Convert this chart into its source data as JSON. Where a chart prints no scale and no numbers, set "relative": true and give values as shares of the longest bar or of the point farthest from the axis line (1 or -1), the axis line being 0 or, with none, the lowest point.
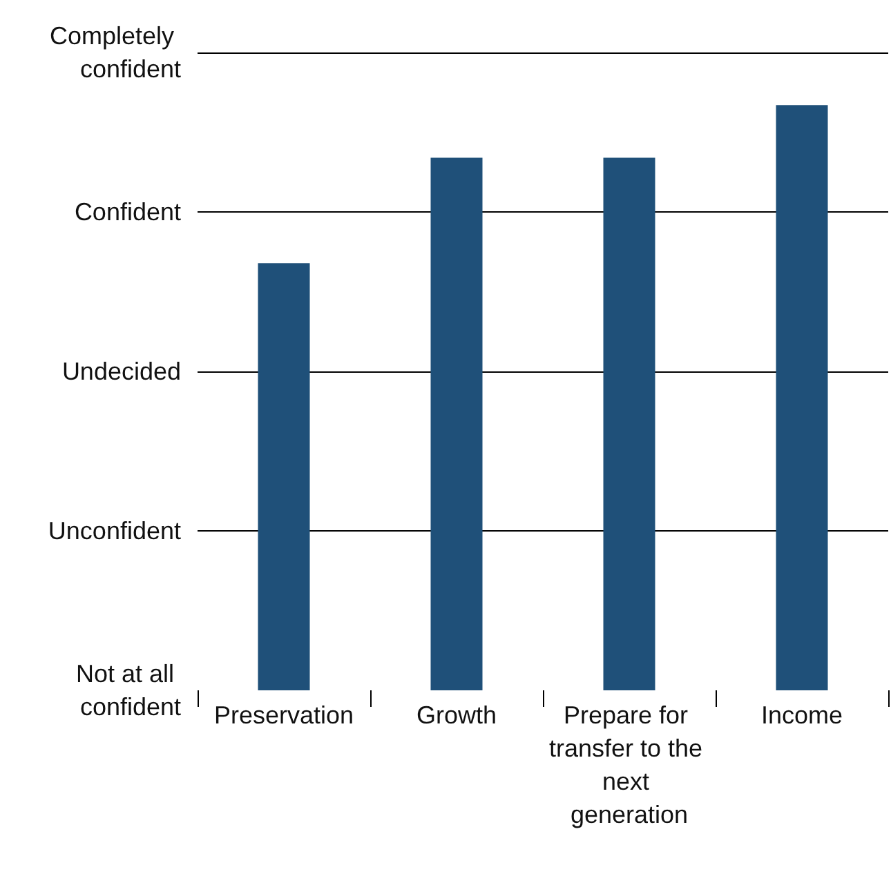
{
  "chart_data": {
    "type": "bar",
    "relative": true,
    "categories": [
      "Preservation",
      "Growth",
      "Prepare for transfer to the next generation",
      "Income"
    ],
    "values": [
      0.73,
      0.91,
      0.91,
      1
    ],
    "color": "#1f5079",
    "annotations": [
      "Completely confident",
      "Confident",
      "Undecided",
      "Unconfident",
      "Not at all confident"
    ],
    "grid": "y"
  }
}
